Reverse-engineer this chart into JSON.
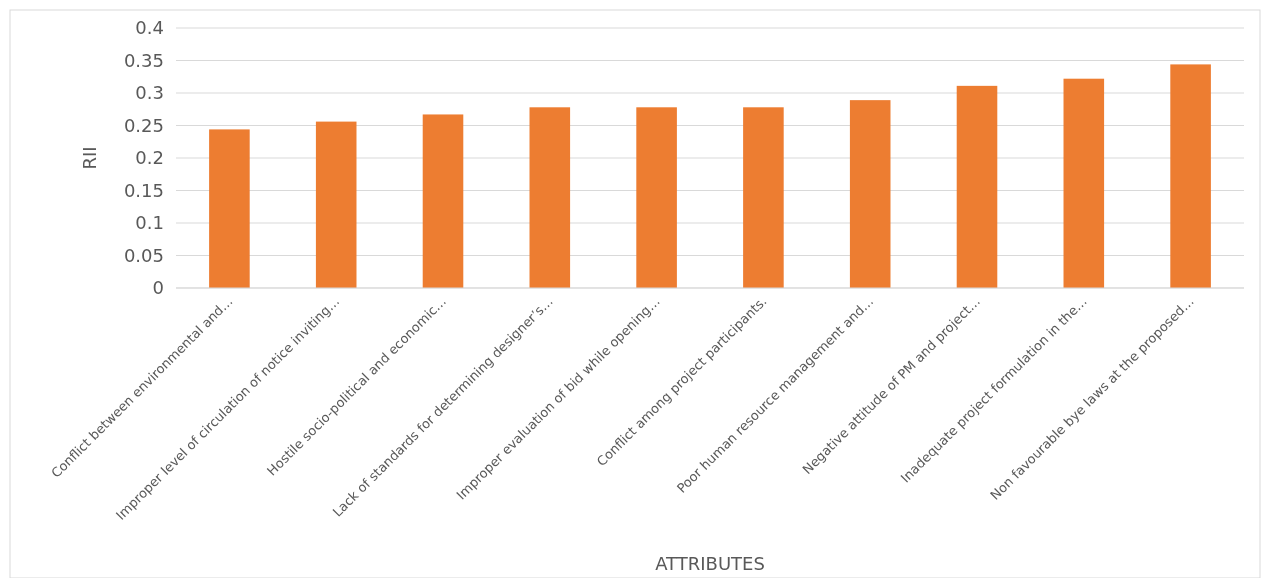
{
  "chart_data": {
    "type": "bar",
    "xlabel": "ATTRIBUTES",
    "ylabel": "RII",
    "categories": [
      "Conflict between environmental and…",
      "Improper level of circulation of notice inviting…",
      "Hostile socio-political and economic…",
      "Lack of standards for determining designer’s…",
      "Improper evaluation of bid while opening…",
      "Conflict among project participants.",
      "Poor human resource management and…",
      "Negative attitude of PM and project…",
      "Inadequate project formulation in the…",
      "Non favourable bye laws at the proposed…"
    ],
    "values": [
      0.244,
      0.256,
      0.267,
      0.278,
      0.278,
      0.278,
      0.289,
      0.311,
      0.322,
      0.344
    ],
    "color": "#ed7d31",
    "ylim": [
      0,
      0.4
    ],
    "yticks": [
      0,
      0.05,
      0.1,
      0.15,
      0.2,
      0.25,
      0.3,
      0.35,
      0.4
    ],
    "grid": "y"
  }
}
